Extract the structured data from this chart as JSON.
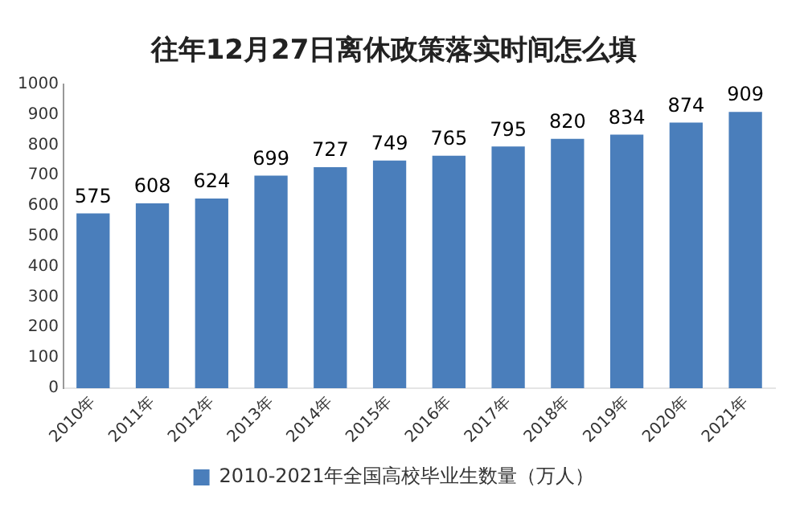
{
  "chart_data": {
    "type": "bar",
    "title": "往年12月27日离休政策落实时间怎么填",
    "categories": [
      "2010年",
      "2011年",
      "2012年",
      "2013年",
      "2014年",
      "2015年",
      "2016年",
      "2017年",
      "2018年",
      "2019年",
      "2020年",
      "2021年"
    ],
    "series": [
      {
        "name": "2010-2021年全国高校毕业生数量（万人）",
        "color": "#4a7ebb",
        "values": [
          575,
          608,
          624,
          699,
          727,
          749,
          765,
          795,
          820,
          834,
          874,
          909
        ]
      }
    ],
    "ylim": [
      0,
      1000
    ],
    "yticks": [
      0,
      100,
      200,
      300,
      400,
      500,
      600,
      700,
      800,
      900,
      1000
    ],
    "grid": false,
    "legend": "bottom",
    "data_labels": true
  }
}
